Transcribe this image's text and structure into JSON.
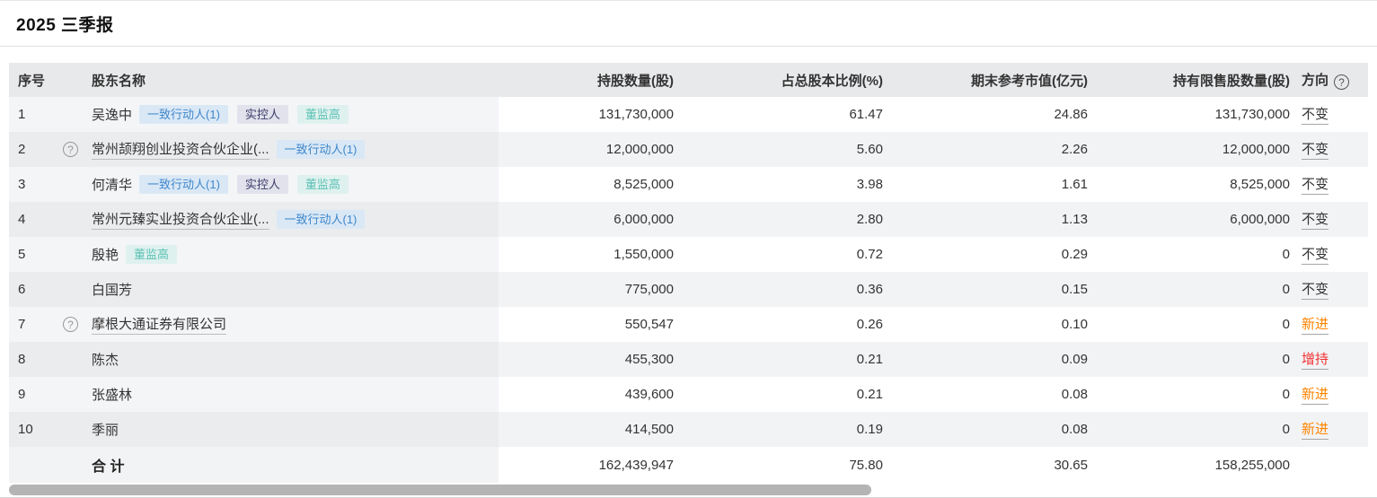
{
  "page": {
    "title": "2025 三季报"
  },
  "table": {
    "headers": {
      "index": "序号",
      "name": "股东名称",
      "shares": "持股数量(股)",
      "pct": "占总股本比例(%)",
      "market_value": "期末参考市值(亿元)",
      "restricted": "持有限售股数量(股)",
      "direction": "方向"
    },
    "direction_help_icon": "?",
    "row_help_icon": "?",
    "rows": [
      {
        "index": "1",
        "has_help": false,
        "name": "吴逸中",
        "name_underlined": false,
        "badges": [
          {
            "label": "一致行动人(1)",
            "type": "blue"
          },
          {
            "label": "实控人",
            "type": "purple"
          },
          {
            "label": "董监高",
            "type": "teal"
          }
        ],
        "shares": "131,730,000",
        "pct": "61.47",
        "market_value": "24.86",
        "restricted": "131,730,000",
        "direction": "不变",
        "direction_type": "unchanged"
      },
      {
        "index": "2",
        "has_help": true,
        "name": "常州颉翔创业投资合伙企业(...",
        "name_underlined": true,
        "badges": [
          {
            "label": "一致行动人(1)",
            "type": "blue"
          }
        ],
        "shares": "12,000,000",
        "pct": "5.60",
        "market_value": "2.26",
        "restricted": "12,000,000",
        "direction": "不变",
        "direction_type": "unchanged"
      },
      {
        "index": "3",
        "has_help": false,
        "name": "何清华",
        "name_underlined": false,
        "badges": [
          {
            "label": "一致行动人(1)",
            "type": "blue"
          },
          {
            "label": "实控人",
            "type": "purple"
          },
          {
            "label": "董监高",
            "type": "teal"
          }
        ],
        "shares": "8,525,000",
        "pct": "3.98",
        "market_value": "1.61",
        "restricted": "8,525,000",
        "direction": "不变",
        "direction_type": "unchanged"
      },
      {
        "index": "4",
        "has_help": false,
        "name": "常州元臻实业投资合伙企业(...",
        "name_underlined": true,
        "badges": [
          {
            "label": "一致行动人(1)",
            "type": "blue"
          }
        ],
        "shares": "6,000,000",
        "pct": "2.80",
        "market_value": "1.13",
        "restricted": "6,000,000",
        "direction": "不变",
        "direction_type": "unchanged"
      },
      {
        "index": "5",
        "has_help": false,
        "name": "殷艳",
        "name_underlined": false,
        "badges": [
          {
            "label": "董监高",
            "type": "teal"
          }
        ],
        "shares": "1,550,000",
        "pct": "0.72",
        "market_value": "0.29",
        "restricted": "0",
        "direction": "不变",
        "direction_type": "unchanged"
      },
      {
        "index": "6",
        "has_help": false,
        "name": "白国芳",
        "name_underlined": false,
        "badges": [],
        "shares": "775,000",
        "pct": "0.36",
        "market_value": "0.15",
        "restricted": "0",
        "direction": "不变",
        "direction_type": "unchanged"
      },
      {
        "index": "7",
        "has_help": true,
        "name": "摩根大通证券有限公司",
        "name_underlined": true,
        "badges": [],
        "shares": "550,547",
        "pct": "0.26",
        "market_value": "0.10",
        "restricted": "0",
        "direction": "新进",
        "direction_type": "new"
      },
      {
        "index": "8",
        "has_help": false,
        "name": "陈杰",
        "name_underlined": false,
        "badges": [],
        "shares": "455,300",
        "pct": "0.21",
        "market_value": "0.09",
        "restricted": "0",
        "direction": "增持",
        "direction_type": "increase"
      },
      {
        "index": "9",
        "has_help": false,
        "name": "张盛林",
        "name_underlined": false,
        "badges": [],
        "shares": "439,600",
        "pct": "0.21",
        "market_value": "0.08",
        "restricted": "0",
        "direction": "新进",
        "direction_type": "new"
      },
      {
        "index": "10",
        "has_help": false,
        "name": "季丽",
        "name_underlined": false,
        "badges": [],
        "shares": "414,500",
        "pct": "0.19",
        "market_value": "0.08",
        "restricted": "0",
        "direction": "新进",
        "direction_type": "new"
      }
    ],
    "total": {
      "label": "合 计",
      "shares": "162,439,947",
      "pct": "75.80",
      "market_value": "30.65",
      "restricted": "158,255,000"
    }
  },
  "colors": {
    "badge_blue_bg": "#dae8f6",
    "badge_blue_text": "#3e87cb",
    "badge_purple_bg": "#e2e2ec",
    "badge_purple_text": "#3d3d6b",
    "badge_teal_bg": "#dff1ee",
    "badge_teal_text": "#5cc2b6",
    "dir_unchanged": "#333333",
    "dir_new": "#ff8400",
    "dir_increase": "#f23030",
    "row_even": "#f2f3f5",
    "fixed_odd": "#f4f5f7",
    "fixed_even": "#eaecee",
    "header_bg": "#e8e9eb",
    "scrollbar_thumb": "#b4b4b4"
  }
}
